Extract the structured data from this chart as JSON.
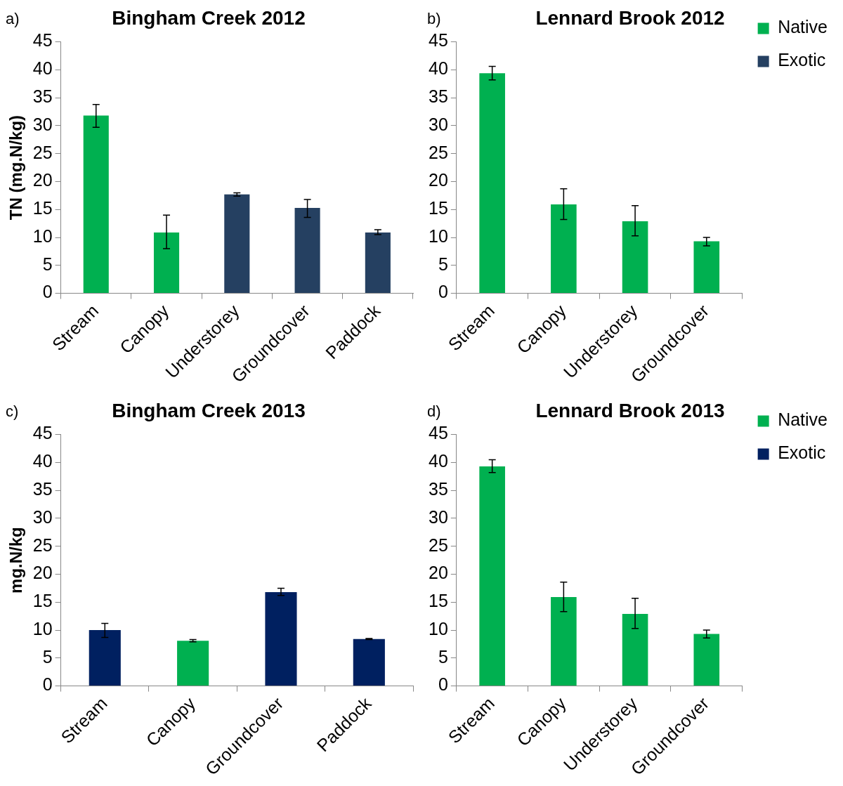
{
  "chart_data": [
    {
      "type": "bar",
      "title": "Bingham Creek 2012",
      "ylabel": "TN (mg.N/kg)",
      "annotations": [
        "a)"
      ],
      "categories": [
        "Stream",
        "Canopy",
        "Understorey",
        "Groundcover",
        "Paddock"
      ],
      "values": [
        31.8,
        10.9,
        17.7,
        15.3,
        10.9
      ],
      "colors": [
        "#00b050",
        "#00b050",
        "#254061",
        "#254061",
        "#254061"
      ],
      "errors": [
        [
          29.7,
          33.8
        ],
        [
          8.0,
          14.0
        ],
        [
          17.4,
          18.0
        ],
        [
          13.6,
          16.8
        ],
        [
          10.5,
          11.4
        ]
      ],
      "ylim": [
        0,
        45
      ],
      "yticks": [
        0,
        5,
        10,
        15,
        20,
        25,
        30,
        35,
        40,
        45
      ]
    },
    {
      "type": "bar",
      "title": "Lennard Brook 2012",
      "annotations": [
        "b)"
      ],
      "categories": [
        "Stream",
        "Canopy",
        "Understorey",
        "Groundcover"
      ],
      "series": [
        {
          "name": "Native",
          "color": "#00b050",
          "values": [
            39.4,
            15.9,
            12.9,
            9.3
          ],
          "errors": [
            [
              38.2,
              40.6
            ],
            [
              13.2,
              18.7
            ],
            [
              10.3,
              15.7
            ],
            [
              8.5,
              10.0
            ]
          ]
        },
        {
          "name": "Exotic",
          "color": "#254061",
          "values": [
            null,
            null,
            null,
            null
          ]
        }
      ],
      "legend": "top right",
      "ylim": [
        0,
        45
      ],
      "yticks": [
        0,
        5,
        10,
        15,
        20,
        25,
        30,
        35,
        40,
        45
      ]
    },
    {
      "type": "bar",
      "title": "Bingham Creek 2013",
      "ylabel": "mg.N/kg",
      "annotations": [
        "c)"
      ],
      "categories": [
        "Stream",
        "Canopy",
        "Groundcover",
        "Paddock"
      ],
      "values": [
        10.0,
        8.1,
        16.8,
        8.4
      ],
      "colors": [
        "#002060",
        "#00b050",
        "#002060",
        "#002060"
      ],
      "errors": [
        [
          8.7,
          11.2
        ],
        [
          7.9,
          8.3
        ],
        [
          16.2,
          17.5
        ],
        [
          8.3,
          8.5
        ]
      ],
      "ylim": [
        0,
        45
      ],
      "yticks": [
        0,
        5,
        10,
        15,
        20,
        25,
        30,
        35,
        40,
        45
      ]
    },
    {
      "type": "bar",
      "title": "Lennard Brook 2013",
      "annotations": [
        "d)"
      ],
      "categories": [
        "Stream",
        "Canopy",
        "Understorey",
        "Groundcover"
      ],
      "series": [
        {
          "name": "Native",
          "color": "#00b050",
          "values": [
            39.3,
            15.9,
            12.9,
            9.3
          ],
          "errors": [
            [
              38.2,
              40.5
            ],
            [
              13.3,
              18.6
            ],
            [
              10.3,
              15.7
            ],
            [
              8.6,
              10.0
            ]
          ]
        },
        {
          "name": "Exotic",
          "color": "#002060",
          "values": [
            null,
            null,
            null,
            null
          ]
        }
      ],
      "legend": "top right",
      "ylim": [
        0,
        45
      ],
      "yticks": [
        0,
        5,
        10,
        15,
        20,
        25,
        30,
        35,
        40,
        45
      ]
    }
  ]
}
